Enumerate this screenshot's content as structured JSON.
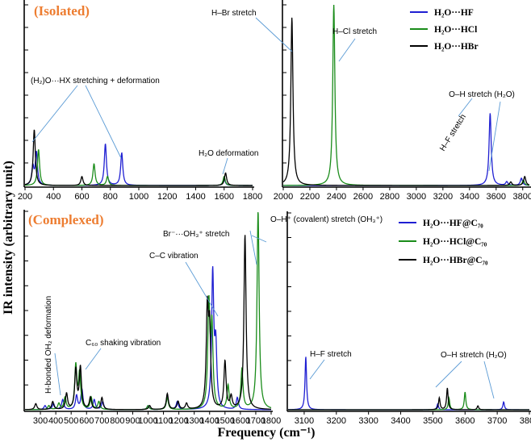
{
  "chart_data": [
    {
      "id": "isolated-low",
      "type": "line",
      "title": "(Isolated)",
      "xlim": [
        200,
        1800
      ],
      "xticks": [
        200,
        400,
        600,
        800,
        1000,
        1200,
        1400,
        1600,
        1800
      ],
      "series": [
        {
          "name": "H2O···HF",
          "color": "#1f1fd2",
          "peaks": [
            [
              255,
              0.1
            ],
            [
              280,
              0.18
            ],
            [
              765,
              0.23
            ],
            [
              880,
              0.18
            ],
            [
              1600,
              0.04
            ]
          ]
        },
        {
          "name": "H2O···HCl",
          "color": "#1a8c1a",
          "peaks": [
            [
              295,
              0.2
            ],
            [
              685,
              0.12
            ],
            [
              780,
              0.05
            ],
            [
              1600,
              0.05
            ]
          ]
        },
        {
          "name": "H2O···HBr",
          "color": "#000000",
          "peaks": [
            [
              265,
              0.31
            ],
            [
              600,
              0.05
            ],
            [
              1610,
              0.07
            ]
          ]
        }
      ],
      "annotations": [
        {
          "id": "stretch-deform",
          "text": "(H₂)O···HX stretching + deformation"
        },
        {
          "id": "h2o-deform",
          "text": "H₂O deformation"
        }
      ]
    },
    {
      "id": "isolated-high",
      "type": "line",
      "xlim": [
        2000,
        3850
      ],
      "xticks": [
        2000,
        2200,
        2400,
        2600,
        2800,
        3000,
        3200,
        3400,
        3600,
        3800
      ],
      "series": [
        {
          "name": "H2O···HF",
          "color": "#1f1fd2",
          "peaks": [
            [
              3555,
              0.4
            ],
            [
              3680,
              0.02
            ],
            [
              3790,
              0.04
            ]
          ]
        },
        {
          "name": "H2O···HCl",
          "color": "#1a8c1a",
          "peaks": [
            [
              2380,
              1.0
            ],
            [
              3805,
              0.03
            ]
          ]
        },
        {
          "name": "H2O···HBr",
          "color": "#000000",
          "peaks": [
            [
              2065,
              0.93
            ],
            [
              3710,
              0.02
            ],
            [
              3815,
              0.05
            ]
          ]
        }
      ],
      "annotations": [
        {
          "id": "hbr-stretch",
          "text": "H–Br stretch"
        },
        {
          "id": "hcl-stretch",
          "text": "H–Cl stretch"
        },
        {
          "id": "hf-stretch",
          "text": "H–F stretch"
        },
        {
          "id": "oh-stretch",
          "text": "O–H stretch (H₂O)"
        }
      ],
      "legend": [
        "H₂O···HF",
        "H₂O···HCl",
        "H₂O···HBr"
      ]
    },
    {
      "id": "complexed-low",
      "type": "line",
      "title": "(Complexed)",
      "xlim": [
        200,
        1800
      ],
      "xticks": [
        300,
        400,
        500,
        600,
        700,
        800,
        900,
        1000,
        1100,
        1200,
        1300,
        1400,
        1500,
        1600,
        1700,
        1800
      ],
      "series": [
        {
          "name": "H2O···HF@C70",
          "color": "#1f1fd2",
          "peaks": [
            [
              330,
              0.02
            ],
            [
              385,
              0.03
            ],
            [
              445,
              0.05
            ],
            [
              535,
              0.07
            ],
            [
              570,
              0.1
            ],
            [
              650,
              0.05
            ],
            [
              705,
              0.04
            ],
            [
              1000,
              0.02
            ],
            [
              1125,
              0.07
            ],
            [
              1190,
              0.04
            ],
            [
              1420,
              0.68
            ],
            [
              1440,
              0.3
            ],
            [
              1580,
              0.06
            ]
          ]
        },
        {
          "name": "H2O···HCl@C70",
          "color": "#1a8c1a",
          "peaks": [
            [
              355,
              0.02
            ],
            [
              420,
              0.03
            ],
            [
              460,
              0.06
            ],
            [
              530,
              0.22
            ],
            [
              555,
              0.18
            ],
            [
              630,
              0.06
            ],
            [
              680,
              0.04
            ],
            [
              1000,
              0.02
            ],
            [
              1125,
              0.06
            ],
            [
              1395,
              0.52
            ],
            [
              1415,
              0.4
            ],
            [
              1520,
              0.12
            ],
            [
              1610,
              0.2
            ],
            [
              1715,
              1.0
            ]
          ]
        },
        {
          "name": "H2O···HBr@C70",
          "color": "#000000",
          "peaks": [
            [
              270,
              0.03
            ],
            [
              380,
              0.04
            ],
            [
              470,
              0.08
            ],
            [
              530,
              0.2
            ],
            [
              560,
              0.21
            ],
            [
              625,
              0.06
            ],
            [
              700,
              0.06
            ],
            [
              1010,
              0.02
            ],
            [
              1125,
              0.08
            ],
            [
              1195,
              0.04
            ],
            [
              1250,
              0.03
            ],
            [
              1385,
              0.48
            ],
            [
              1400,
              0.38
            ],
            [
              1500,
              0.24
            ],
            [
              1540,
              0.06
            ],
            [
              1630,
              0.88
            ]
          ]
        }
      ],
      "annotations": [
        {
          "id": "br-oh3-stretch",
          "text": "Br⁻···OH₃⁺ stretch"
        },
        {
          "id": "oh-covalent",
          "text": "O–H⁺ (covalent) stretch (OH₃⁺)"
        },
        {
          "id": "cc-vibration",
          "text": "C–C vibration"
        },
        {
          "id": "c60-shaking",
          "text": "C₆₀ shaking vibration"
        },
        {
          "id": "hbonded-oh2",
          "text": "H-bonded OH₂ deformation"
        }
      ]
    },
    {
      "id": "complexed-high",
      "type": "line",
      "xlim": [
        3050,
        3800
      ],
      "xticks": [
        3100,
        3200,
        3300,
        3400,
        3500,
        3600,
        3700,
        3800
      ],
      "series": [
        {
          "name": "H2O···HF@C70",
          "color": "#1f1fd2",
          "peaks": [
            [
              3105,
              0.27
            ],
            [
              3515,
              0.03
            ],
            [
              3720,
              0.04
            ]
          ]
        },
        {
          "name": "H2O···HCl@C70",
          "color": "#1a8c1a",
          "peaks": [
            [
              3550,
              0.06
            ],
            [
              3600,
              0.09
            ]
          ]
        },
        {
          "name": "H2O···HBr@C70",
          "color": "#000000",
          "peaks": [
            [
              3520,
              0.06
            ],
            [
              3545,
              0.11
            ],
            [
              3640,
              0.02
            ]
          ]
        }
      ],
      "annotations": [
        {
          "id": "hf-stretch-c",
          "text": "H–F stretch"
        },
        {
          "id": "oh-stretch-c",
          "text": "O–H stretch (H₂O)"
        }
      ],
      "legend": [
        "H₂O···HF@C₇₀",
        "H₂O···HCl@C₇₀",
        "H₂O···HBr@C₇₀"
      ]
    }
  ],
  "axes": {
    "xlabel": "Frequency (cm⁻¹)",
    "ylabel": "IR intensity (arbitrary unit)"
  },
  "colors": {
    "hf": "#1f1fd2",
    "hcl": "#1a8c1a",
    "hbr": "#000000",
    "title": "#ed7d31",
    "arrow": "#5b9bd5"
  }
}
